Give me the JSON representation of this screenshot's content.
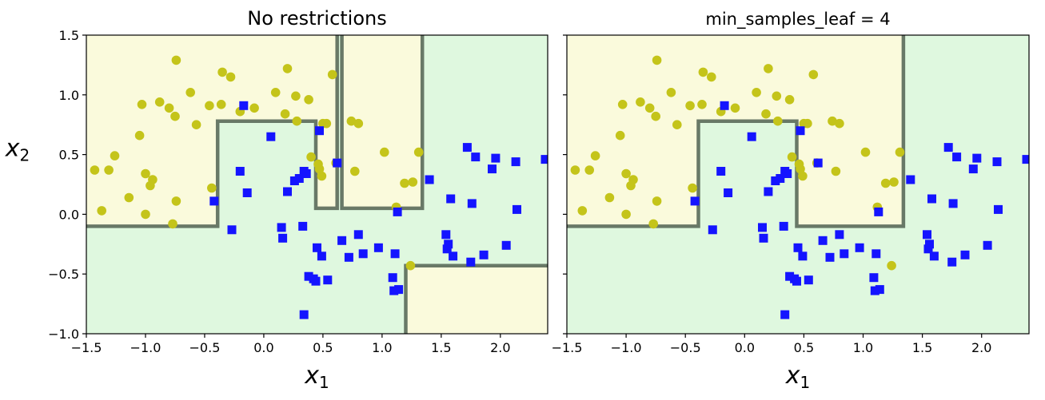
{
  "chart_data": [
    {
      "type": "scatter",
      "title": "No restrictions",
      "xlabel": "x1",
      "ylabel": "x2",
      "xlim": [
        -1.5,
        2.4
      ],
      "ylim": [
        -1.0,
        1.5
      ],
      "xticks": [
        "−1.5",
        "−1.0",
        "−0.5",
        "0.0",
        "0.5",
        "1.0",
        "1.5",
        "2.0"
      ],
      "yticks": [
        "1.5",
        "1.0",
        "0.5",
        "0.0",
        "−0.5",
        "−1.0"
      ],
      "colors": {
        "class0_region": "#fafadc",
        "class1_region": "#dff8df",
        "class0_marker": "#c4c41a",
        "class1_marker": "#1414ff",
        "boundary": "#5a6a5a"
      },
      "yellow_regions": [
        [
          [
            -1.5,
            -0.1
          ],
          [
            -0.39,
            -0.1
          ],
          [
            -0.39,
            0.78
          ],
          [
            0.44,
            0.78
          ],
          [
            0.44,
            0.05
          ],
          [
            0.62,
            0.05
          ],
          [
            0.62,
            1.5
          ],
          [
            -1.5,
            1.5
          ]
        ],
        [
          [
            0.66,
            0.05
          ],
          [
            1.34,
            0.05
          ],
          [
            1.34,
            1.5
          ],
          [
            0.66,
            1.5
          ]
        ],
        [
          [
            1.2,
            -1.0
          ],
          [
            2.4,
            -1.0
          ],
          [
            2.4,
            -0.43
          ],
          [
            1.2,
            -0.43
          ]
        ]
      ],
      "boundaries": [
        [
          [
            -1.5,
            -0.1
          ],
          [
            -0.39,
            -0.1
          ],
          [
            -0.39,
            0.78
          ],
          [
            0.44,
            0.78
          ],
          [
            0.44,
            0.05
          ],
          [
            0.62,
            0.05
          ],
          [
            0.62,
            1.5
          ]
        ],
        [
          [
            0.66,
            1.5
          ],
          [
            0.66,
            0.05
          ],
          [
            1.34,
            0.05
          ],
          [
            1.34,
            1.5
          ]
        ],
        [
          [
            1.2,
            -1.0
          ],
          [
            1.2,
            -0.43
          ],
          [
            2.4,
            -0.43
          ]
        ]
      ],
      "class0": [
        [
          -1.43,
          0.37
        ],
        [
          -1.37,
          0.03
        ],
        [
          -1.31,
          0.37
        ],
        [
          -1.26,
          0.49
        ],
        [
          -1.14,
          0.14
        ],
        [
          -1.05,
          0.66
        ],
        [
          -1.03,
          0.92
        ],
        [
          -1.0,
          0.34
        ],
        [
          -1.0,
          0.0
        ],
        [
          -0.96,
          0.24
        ],
        [
          -0.94,
          0.29
        ],
        [
          -0.88,
          0.94
        ],
        [
          -0.8,
          0.89
        ],
        [
          -0.75,
          0.82
        ],
        [
          -0.77,
          -0.08
        ],
        [
          -0.74,
          0.11
        ],
        [
          -0.74,
          1.29
        ],
        [
          -0.62,
          1.02
        ],
        [
          -0.57,
          0.75
        ],
        [
          -0.46,
          0.91
        ],
        [
          -0.44,
          0.22
        ],
        [
          -0.36,
          0.92
        ],
        [
          -0.35,
          1.19
        ],
        [
          -0.28,
          1.15
        ],
        [
          -0.2,
          0.86
        ],
        [
          -0.08,
          0.89
        ],
        [
          0.1,
          1.02
        ],
        [
          0.18,
          0.84
        ],
        [
          0.2,
          1.22
        ],
        [
          0.27,
          0.99
        ],
        [
          0.28,
          0.78
        ],
        [
          0.38,
          0.96
        ],
        [
          0.4,
          0.48
        ],
        [
          0.46,
          0.42
        ],
        [
          0.47,
          0.38
        ],
        [
          0.49,
          0.32
        ],
        [
          0.5,
          0.76
        ],
        [
          0.53,
          0.76
        ],
        [
          0.58,
          1.17
        ],
        [
          0.61,
          0.43
        ],
        [
          0.74,
          0.78
        ],
        [
          0.77,
          0.36
        ],
        [
          0.8,
          0.76
        ],
        [
          1.02,
          0.52
        ],
        [
          1.12,
          0.06
        ],
        [
          1.19,
          0.26
        ],
        [
          1.26,
          0.27
        ],
        [
          1.31,
          0.52
        ],
        [
          1.24,
          -0.43
        ]
      ],
      "class1": [
        [
          -0.42,
          0.11
        ],
        [
          -0.27,
          -0.13
        ],
        [
          -0.2,
          0.36
        ],
        [
          -0.17,
          0.91
        ],
        [
          -0.14,
          0.18
        ],
        [
          0.06,
          0.65
        ],
        [
          0.15,
          -0.11
        ],
        [
          0.16,
          -0.2
        ],
        [
          0.2,
          0.19
        ],
        [
          0.26,
          0.28
        ],
        [
          0.3,
          0.3
        ],
        [
          0.33,
          -0.1
        ],
        [
          0.34,
          0.36
        ],
        [
          0.36,
          0.34
        ],
        [
          0.45,
          -0.28
        ],
        [
          0.47,
          0.7
        ],
        [
          0.49,
          -0.35
        ],
        [
          0.54,
          -0.55
        ],
        [
          0.62,
          0.43
        ],
        [
          0.66,
          -0.22
        ],
        [
          0.72,
          -0.36
        ],
        [
          0.84,
          -0.33
        ],
        [
          0.8,
          -0.17
        ],
        [
          0.97,
          -0.28
        ],
        [
          1.09,
          -0.53
        ],
        [
          1.1,
          -0.64
        ],
        [
          1.11,
          -0.33
        ],
        [
          1.13,
          0.02
        ],
        [
          1.14,
          -0.63
        ],
        [
          1.4,
          0.29
        ],
        [
          1.54,
          -0.17
        ],
        [
          1.56,
          -0.25
        ],
        [
          1.55,
          -0.29
        ],
        [
          1.58,
          0.13
        ],
        [
          1.6,
          -0.35
        ],
        [
          1.72,
          0.56
        ],
        [
          1.75,
          -0.4
        ],
        [
          1.76,
          0.09
        ],
        [
          1.79,
          0.48
        ],
        [
          1.86,
          -0.34
        ],
        [
          1.93,
          0.38
        ],
        [
          1.96,
          0.47
        ],
        [
          2.05,
          -0.26
        ],
        [
          2.13,
          0.44
        ],
        [
          2.14,
          0.04
        ],
        [
          2.38,
          0.46
        ],
        [
          0.34,
          -0.84
        ],
        [
          0.38,
          -0.52
        ],
        [
          0.42,
          -0.54
        ],
        [
          0.44,
          -0.56
        ]
      ]
    },
    {
      "type": "scatter",
      "title": "min_samples_leaf = 4",
      "xlabel": "x1",
      "ylabel": "",
      "xlim": [
        -1.5,
        2.4
      ],
      "ylim": [
        -1.0,
        1.5
      ],
      "xticks": [
        "−1.5",
        "−1.0",
        "−0.5",
        "0.0",
        "0.5",
        "1.0",
        "1.5",
        "2.0"
      ],
      "yticks": [],
      "colors": {
        "class0_region": "#fafadc",
        "class1_region": "#dff8df",
        "class0_marker": "#c4c41a",
        "class1_marker": "#1414ff",
        "boundary": "#5a6a5a"
      },
      "yellow_regions": [
        [
          [
            -1.5,
            -0.1
          ],
          [
            -0.39,
            -0.1
          ],
          [
            -0.39,
            0.78
          ],
          [
            0.44,
            0.78
          ],
          [
            0.44,
            -0.1
          ],
          [
            1.34,
            -0.1
          ],
          [
            1.34,
            1.5
          ],
          [
            -1.5,
            1.5
          ]
        ]
      ],
      "boundaries": [
        [
          [
            -1.5,
            -0.1
          ],
          [
            -0.39,
            -0.1
          ],
          [
            -0.39,
            0.78
          ],
          [
            0.44,
            0.78
          ],
          [
            0.44,
            -0.1
          ],
          [
            1.34,
            -0.1
          ],
          [
            1.34,
            1.5
          ]
        ]
      ],
      "class0": [
        [
          -1.43,
          0.37
        ],
        [
          -1.37,
          0.03
        ],
        [
          -1.31,
          0.37
        ],
        [
          -1.26,
          0.49
        ],
        [
          -1.14,
          0.14
        ],
        [
          -1.05,
          0.66
        ],
        [
          -1.03,
          0.92
        ],
        [
          -1.0,
          0.34
        ],
        [
          -1.0,
          0.0
        ],
        [
          -0.96,
          0.24
        ],
        [
          -0.94,
          0.29
        ],
        [
          -0.88,
          0.94
        ],
        [
          -0.8,
          0.89
        ],
        [
          -0.75,
          0.82
        ],
        [
          -0.77,
          -0.08
        ],
        [
          -0.74,
          0.11
        ],
        [
          -0.74,
          1.29
        ],
        [
          -0.62,
          1.02
        ],
        [
          -0.57,
          0.75
        ],
        [
          -0.46,
          0.91
        ],
        [
          -0.44,
          0.22
        ],
        [
          -0.36,
          0.92
        ],
        [
          -0.35,
          1.19
        ],
        [
          -0.28,
          1.15
        ],
        [
          -0.2,
          0.86
        ],
        [
          -0.08,
          0.89
        ],
        [
          0.1,
          1.02
        ],
        [
          0.18,
          0.84
        ],
        [
          0.2,
          1.22
        ],
        [
          0.27,
          0.99
        ],
        [
          0.28,
          0.78
        ],
        [
          0.38,
          0.96
        ],
        [
          0.4,
          0.48
        ],
        [
          0.46,
          0.42
        ],
        [
          0.47,
          0.38
        ],
        [
          0.49,
          0.32
        ],
        [
          0.5,
          0.76
        ],
        [
          0.53,
          0.76
        ],
        [
          0.58,
          1.17
        ],
        [
          0.61,
          0.43
        ],
        [
          0.74,
          0.78
        ],
        [
          0.77,
          0.36
        ],
        [
          0.8,
          0.76
        ],
        [
          1.02,
          0.52
        ],
        [
          1.12,
          0.06
        ],
        [
          1.19,
          0.26
        ],
        [
          1.26,
          0.27
        ],
        [
          1.31,
          0.52
        ],
        [
          1.24,
          -0.43
        ]
      ],
      "class1": [
        [
          -0.42,
          0.11
        ],
        [
          -0.27,
          -0.13
        ],
        [
          -0.2,
          0.36
        ],
        [
          -0.17,
          0.91
        ],
        [
          -0.14,
          0.18
        ],
        [
          0.06,
          0.65
        ],
        [
          0.15,
          -0.11
        ],
        [
          0.16,
          -0.2
        ],
        [
          0.2,
          0.19
        ],
        [
          0.26,
          0.28
        ],
        [
          0.3,
          0.3
        ],
        [
          0.33,
          -0.1
        ],
        [
          0.34,
          0.36
        ],
        [
          0.36,
          0.34
        ],
        [
          0.45,
          -0.28
        ],
        [
          0.47,
          0.7
        ],
        [
          0.49,
          -0.35
        ],
        [
          0.54,
          -0.55
        ],
        [
          0.62,
          0.43
        ],
        [
          0.66,
          -0.22
        ],
        [
          0.72,
          -0.36
        ],
        [
          0.84,
          -0.33
        ],
        [
          0.8,
          -0.17
        ],
        [
          0.97,
          -0.28
        ],
        [
          1.09,
          -0.53
        ],
        [
          1.1,
          -0.64
        ],
        [
          1.11,
          -0.33
        ],
        [
          1.13,
          0.02
        ],
        [
          1.14,
          -0.63
        ],
        [
          1.4,
          0.29
        ],
        [
          1.54,
          -0.17
        ],
        [
          1.56,
          -0.25
        ],
        [
          1.55,
          -0.29
        ],
        [
          1.58,
          0.13
        ],
        [
          1.6,
          -0.35
        ],
        [
          1.72,
          0.56
        ],
        [
          1.75,
          -0.4
        ],
        [
          1.76,
          0.09
        ],
        [
          1.79,
          0.48
        ],
        [
          1.86,
          -0.34
        ],
        [
          1.93,
          0.38
        ],
        [
          1.96,
          0.47
        ],
        [
          2.05,
          -0.26
        ],
        [
          2.13,
          0.44
        ],
        [
          2.14,
          0.04
        ],
        [
          2.38,
          0.46
        ],
        [
          0.34,
          -0.84
        ],
        [
          0.38,
          -0.52
        ],
        [
          0.42,
          -0.54
        ],
        [
          0.44,
          -0.56
        ]
      ]
    }
  ]
}
